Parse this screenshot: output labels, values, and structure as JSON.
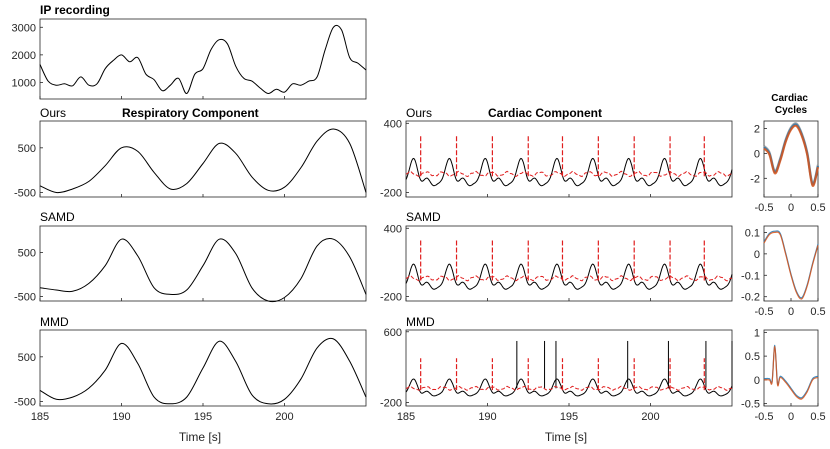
{
  "chart_data": [
    {
      "type": "line",
      "id": "ip",
      "title": "IP recording",
      "ylim": [
        400,
        3300
      ],
      "yticks": [
        "1000",
        "2000",
        "3000"
      ],
      "x": [
        185,
        185.5,
        186,
        186.5,
        187,
        187.5,
        188,
        188.5,
        189,
        189.5,
        190,
        190.5,
        191,
        191.5,
        192,
        192.5,
        193,
        193.5,
        194,
        194.5,
        195,
        195.5,
        196,
        196.5,
        197,
        197.5,
        198,
        198.5,
        199,
        199.5,
        200,
        200.5,
        201,
        201.5,
        202,
        202.5,
        203,
        203.5,
        204,
        204.5,
        205
      ],
      "values": [
        1650,
        1050,
        900,
        950,
        880,
        1200,
        900,
        950,
        1500,
        1800,
        2000,
        1750,
        1900,
        1300,
        1100,
        700,
        900,
        1150,
        600,
        1300,
        1500,
        2200,
        2550,
        2400,
        1600,
        1150,
        1050,
        800,
        600,
        750,
        650,
        950,
        900,
        1050,
        1200,
        2200,
        3000,
        2900,
        1900,
        1700,
        1450
      ]
    },
    {
      "type": "line",
      "id": "resp-ours",
      "label": "Ours",
      "title": "Respiratory Component",
      "ylim": [
        -600,
        1100
      ],
      "yticks": [
        "500",
        "-500"
      ],
      "x": [
        185,
        186,
        187,
        188,
        189,
        190,
        191,
        192,
        193,
        194,
        195,
        196,
        197,
        198,
        199,
        200,
        201,
        202,
        203,
        204,
        205
      ],
      "values": [
        -350,
        -500,
        -420,
        -250,
        100,
        500,
        420,
        -50,
        -420,
        -300,
        150,
        600,
        380,
        -150,
        -450,
        -380,
        50,
        650,
        920,
        600,
        -500
      ]
    },
    {
      "type": "line",
      "id": "resp-samd",
      "label": "SAMD",
      "ylim": [
        -600,
        1100
      ],
      "yticks": [
        "500",
        "-500"
      ],
      "x": [
        185,
        186,
        187,
        188,
        189,
        190,
        191,
        192,
        193,
        194,
        195,
        196,
        197,
        198,
        199,
        200,
        201,
        202,
        203,
        204,
        205
      ],
      "values": [
        -300,
        -350,
        -380,
        -200,
        200,
        800,
        420,
        -300,
        -450,
        -350,
        200,
        800,
        480,
        -300,
        -600,
        -520,
        -100,
        650,
        800,
        400,
        -450
      ]
    },
    {
      "type": "line",
      "id": "resp-mmd",
      "label": "MMD",
      "ylim": [
        -600,
        1100
      ],
      "yticks": [
        "500",
        "-500"
      ],
      "x": [
        185,
        186,
        187,
        188,
        189,
        190,
        191,
        192,
        193,
        194,
        195,
        196,
        197,
        198,
        199,
        200,
        201,
        202,
        203,
        204,
        205
      ],
      "values": [
        -250,
        -450,
        -400,
        -200,
        200,
        800,
        350,
        -400,
        -550,
        -400,
        250,
        850,
        400,
        -350,
        -550,
        -450,
        0,
        700,
        900,
        400,
        -400
      ]
    },
    {
      "type": "line",
      "id": "card-ours",
      "label": "Ours",
      "title": "Cardiac Component",
      "ylim": [
        -240,
        420
      ],
      "yticks": [
        "400",
        "-200"
      ],
      "period": 2.2,
      "spikes": [
        185.9,
        188.1,
        190.3,
        192.5,
        194.6,
        196.8,
        199,
        201.2,
        203.3
      ],
      "peaks_black": [
        185.5,
        187.7,
        189.9,
        192.1,
        194.3,
        196.5,
        198.7,
        200.9,
        203.1
      ],
      "black_amp": 160,
      "red_amp": 300
    },
    {
      "type": "line",
      "id": "card-samd",
      "label": "SAMD",
      "ylim": [
        -240,
        420
      ],
      "yticks": [
        "400",
        "-200"
      ],
      "period": 2.2,
      "spikes": [
        185.9,
        188.1,
        190.3,
        192.5,
        194.6,
        196.8,
        199,
        201.2,
        203.3
      ],
      "peaks_black": [
        185.5,
        187.7,
        189.9,
        192.1,
        194.3,
        196.5,
        198.7,
        200.9,
        203.1
      ],
      "black_amp": 150,
      "red_amp": 300
    },
    {
      "type": "line",
      "id": "card-mmd",
      "label": "MMD",
      "ylim": [
        -240,
        620
      ],
      "yticks": [
        "600",
        "-200"
      ],
      "period": 2.2,
      "spikes": [
        185.9,
        188.1,
        190.3,
        192.5,
        194.6,
        196.8,
        199,
        201.2,
        203.3
      ],
      "peaks_black": [
        185.5,
        187.7,
        189.9,
        192.1,
        194.3,
        196.5,
        198.7,
        200.9,
        203.1
      ],
      "black_amp": 130,
      "red_amp": 300,
      "black_spikes": [
        191.8,
        193.5,
        194.2,
        198.6,
        201.1,
        203.4,
        205
      ]
    },
    {
      "type": "line",
      "id": "cyc-ours",
      "title": "Cardiac Cycles",
      "xlim": [
        -0.5,
        0.5
      ],
      "ylim": [
        -3.5,
        2.6
      ],
      "yticks": [
        "2",
        "0",
        "-2"
      ],
      "x": [
        -0.5,
        -0.4,
        -0.3,
        -0.2,
        -0.1,
        0,
        0.1,
        0.2,
        0.3,
        0.4,
        0.5
      ],
      "values": [
        0.5,
        0,
        -1.5,
        -0.5,
        1,
        2,
        2.3,
        1.5,
        0,
        -2.5,
        -1
      ]
    },
    {
      "type": "line",
      "id": "cyc-samd",
      "xlim": [
        -0.5,
        0.5
      ],
      "ylim": [
        -0.22,
        0.13
      ],
      "yticks": [
        "0.1",
        "0",
        "-0.1",
        "-0.2"
      ],
      "x": [
        -0.5,
        -0.4,
        -0.3,
        -0.2,
        -0.1,
        0,
        0.1,
        0.2,
        0.3,
        0.4,
        0.5
      ],
      "values": [
        0.05,
        0.09,
        0.1,
        0.09,
        0,
        -0.1,
        -0.18,
        -0.21,
        -0.15,
        -0.05,
        0.04
      ]
    },
    {
      "type": "line",
      "id": "cyc-mmd",
      "xlim": [
        -0.5,
        0.5
      ],
      "ylim": [
        -0.55,
        1.05
      ],
      "yticks": [
        "1",
        "0.5",
        "0",
        "-0.5"
      ],
      "x": [
        -0.5,
        -0.4,
        -0.35,
        -0.3,
        -0.25,
        -0.2,
        -0.1,
        0,
        0.1,
        0.2,
        0.3,
        0.4,
        0.5
      ],
      "values": [
        0,
        0,
        -0.05,
        0.7,
        -0.1,
        0.05,
        -0.05,
        -0.2,
        -0.35,
        -0.4,
        -0.25,
        0,
        0.05
      ]
    }
  ],
  "xaxis": {
    "ticks": [
      "185",
      "190",
      "195",
      "200"
    ],
    "tick_values": [
      185,
      190,
      195,
      200
    ],
    "range": [
      185,
      205
    ],
    "label": "Time [s]"
  },
  "xaxis_cycles": {
    "ticks": [
      "-0.5",
      "0",
      "0.5"
    ],
    "tick_values": [
      -0.5,
      0,
      0.5
    ]
  },
  "colors": {
    "black": "#000000",
    "red": "#e01e1e",
    "blue": "#1f77b4",
    "orange": "#d95319",
    "gray": "#999999"
  }
}
